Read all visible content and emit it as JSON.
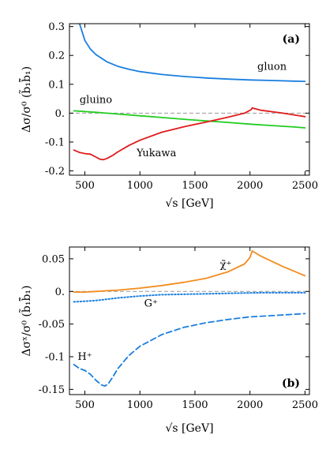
{
  "chart_data": [
    {
      "type": "line",
      "panel_label": "(a)",
      "xlabel": "√s [GeV]",
      "ylabel": "Δσ/σ⁰ (b̃₁b̃̄₁)",
      "xlim": [
        360,
        2540
      ],
      "ylim": [
        -0.215,
        0.31
      ],
      "xticks": [
        500,
        1000,
        1500,
        2000,
        2500
      ],
      "yticks": [
        -0.2,
        -0.1,
        0.0,
        0.1,
        0.2,
        0.3
      ],
      "ytick_labels": [
        "-0.2",
        "-0.1",
        "0.",
        "0.1",
        "0.2",
        "0.3"
      ],
      "xtick_labels": [
        "500",
        "1000",
        "1500",
        "2000",
        "2500"
      ],
      "zero_line": true,
      "series": [
        {
          "name": "gluon",
          "color": "#1a7fe0",
          "style": "solid",
          "x": [
            452,
            500,
            550,
            600,
            700,
            800,
            900,
            1000,
            1200,
            1400,
            1600,
            1800,
            2000,
            2200,
            2400,
            2500
          ],
          "y": [
            0.31,
            0.252,
            0.222,
            0.203,
            0.178,
            0.162,
            0.152,
            0.144,
            0.134,
            0.127,
            0.122,
            0.118,
            0.115,
            0.113,
            0.111,
            0.11
          ]
        },
        {
          "name": "gluino",
          "color": "#22cc22",
          "style": "solid",
          "x": [
            400,
            600,
            800,
            1000,
            1200,
            1400,
            1600,
            1800,
            2000,
            2200,
            2400,
            2500
          ],
          "y": [
            0.008,
            0.003,
            -0.003,
            -0.009,
            -0.015,
            -0.021,
            -0.027,
            -0.032,
            -0.038,
            -0.043,
            -0.048,
            -0.051
          ]
        },
        {
          "name": "Yukawa",
          "color": "#e01b1b",
          "style": "solid",
          "x": [
            400,
            450,
            500,
            550,
            600,
            640,
            670,
            700,
            750,
            800,
            900,
            1000,
            1200,
            1400,
            1600,
            1800,
            1950,
            2010,
            2020,
            2100,
            2300,
            2500
          ],
          "y": [
            -0.128,
            -0.136,
            -0.14,
            -0.142,
            -0.152,
            -0.16,
            -0.161,
            -0.157,
            -0.147,
            -0.134,
            -0.112,
            -0.094,
            -0.066,
            -0.047,
            -0.031,
            -0.014,
            0.0,
            0.012,
            0.018,
            0.01,
            0.0,
            -0.012
          ]
        }
      ],
      "annotations": [
        {
          "text": "gluon",
          "x": 2200,
          "y": 0.15
        },
        {
          "text": "gluino",
          "x": 600,
          "y": 0.035
        },
        {
          "text": "Yukawa",
          "x": 1150,
          "y": -0.15
        }
      ]
    },
    {
      "type": "line",
      "panel_label": "(b)",
      "xlabel": "√s [GeV]",
      "ylabel": "Δσˣ/σ⁰ (b̃₁b̃̄₁)",
      "xlim": [
        360,
        2540
      ],
      "ylim": [
        -0.158,
        0.068
      ],
      "xticks": [
        500,
        1000,
        1500,
        2000,
        2500
      ],
      "yticks": [
        -0.15,
        -0.1,
        -0.05,
        0.0,
        0.05
      ],
      "ytick_labels": [
        "-0.15",
        "-0.1",
        "-0.05",
        "0.",
        "0.05"
      ],
      "xtick_labels": [
        "500",
        "1000",
        "1500",
        "2000",
        "2500"
      ],
      "zero_line": true,
      "series": [
        {
          "name": "χ̃⁺",
          "color": "#f28c1e",
          "style": "solid",
          "x": [
            400,
            500,
            600,
            700,
            800,
            1000,
            1200,
            1400,
            1600,
            1800,
            1950,
            2000,
            2020,
            2100,
            2300,
            2500
          ],
          "y": [
            -0.001,
            -0.001,
            0.0,
            0.001,
            0.002,
            0.005,
            0.009,
            0.014,
            0.02,
            0.03,
            0.042,
            0.052,
            0.062,
            0.054,
            0.038,
            0.024
          ]
        },
        {
          "name": "G⁺",
          "color": "#1a7fe0",
          "style": "dotted",
          "x": [
            400,
            500,
            600,
            700,
            800,
            1000,
            1200,
            1500,
            1800,
            2100,
            2500
          ],
          "y": [
            -0.016,
            -0.015,
            -0.014,
            -0.012,
            -0.01,
            -0.007,
            -0.005,
            -0.004,
            -0.003,
            -0.002,
            -0.002
          ]
        },
        {
          "name": "H⁺",
          "color": "#1a7fe0",
          "style": "dashed",
          "x": [
            400,
            450,
            500,
            550,
            600,
            650,
            680,
            710,
            750,
            800,
            900,
            1000,
            1200,
            1400,
            1600,
            1800,
            2000,
            2200,
            2500
          ],
          "y": [
            -0.112,
            -0.118,
            -0.121,
            -0.127,
            -0.136,
            -0.143,
            -0.145,
            -0.142,
            -0.132,
            -0.118,
            -0.098,
            -0.084,
            -0.066,
            -0.055,
            -0.048,
            -0.043,
            -0.039,
            -0.037,
            -0.034
          ]
        }
      ],
      "annotations": [
        {
          "text": "χ̃⁺",
          "x": 1780,
          "y": 0.036
        },
        {
          "text": "G⁺",
          "x": 1100,
          "y": -0.023
        },
        {
          "text": "H⁺",
          "x": 500,
          "y": -0.105
        }
      ]
    }
  ]
}
